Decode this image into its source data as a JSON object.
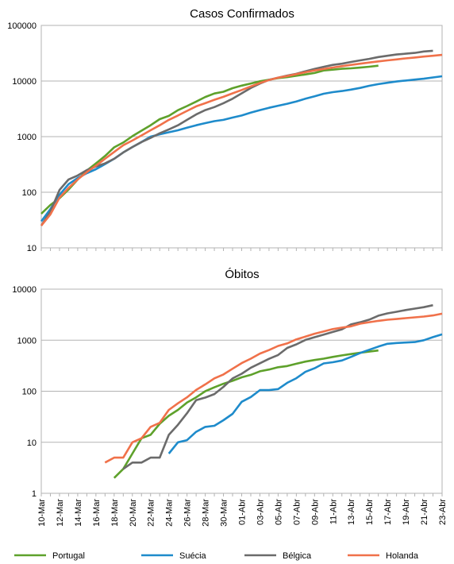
{
  "chart_data": [
    {
      "type": "line",
      "title": "Casos Confirmados",
      "log_scale": true,
      "grid": true,
      "ylim": [
        10,
        100000
      ],
      "yticks": [
        10,
        100,
        1000,
        10000,
        100000
      ],
      "series": [
        {
          "name": "Portugal",
          "color": "#5ea12b",
          "values": [
            41,
            59,
            78,
            112,
            169,
            245,
            331,
            448,
            642,
            785,
            1020,
            1280,
            1600,
            2060,
            2362,
            2995,
            3544,
            4268,
            5170,
            5962,
            6408,
            7443,
            8251,
            9034,
            9886,
            10524,
            11278,
            11730,
            12442,
            13141,
            13956,
            15472,
            15987,
            16585,
            16934,
            17448,
            18091,
            18841,
            null,
            null,
            null,
            null,
            null,
            null,
            null
          ]
        },
        {
          "name": "Suécia",
          "color": "#1e8bcb",
          "values": [
            30,
            50,
            90,
            140,
            180,
            220,
            260,
            320,
            400,
            520,
            650,
            800,
            1000,
            1100,
            1200,
            1300,
            1450,
            1600,
            1750,
            1900,
            2000,
            2200,
            2400,
            2700,
            3000,
            3300,
            3600,
            3900,
            4300,
            4800,
            5300,
            5900,
            6300,
            6600,
            7000,
            7500,
            8200,
            8800,
            9300,
            9800,
            10200,
            10600,
            11000,
            11600,
            12200
          ]
        },
        {
          "name": "Bélgica",
          "color": "#6b6b6b",
          "values": [
            25,
            45,
            110,
            170,
            200,
            250,
            290,
            330,
            400,
            520,
            650,
            800,
            950,
            1150,
            1350,
            1600,
            2000,
            2500,
            3000,
            3400,
            4000,
            4800,
            6000,
            7500,
            9000,
            10500,
            11500,
            12500,
            13500,
            15000,
            16500,
            18000,
            19500,
            20500,
            22000,
            23500,
            25000,
            27000,
            28500,
            30000,
            31000,
            32000,
            34000,
            35000,
            null
          ]
        },
        {
          "name": "Holanda",
          "color": "#f0714a",
          "values": [
            25,
            40,
            80,
            120,
            170,
            230,
            300,
            400,
            530,
            700,
            850,
            1050,
            1300,
            1600,
            2000,
            2400,
            2900,
            3500,
            4000,
            4600,
            5200,
            6000,
            6900,
            8000,
            9200,
            10400,
            11500,
            12300,
            13300,
            14400,
            15500,
            16500,
            17500,
            18500,
            19500,
            20500,
            21500,
            22500,
            23500,
            24500,
            25500,
            26500,
            27500,
            28500,
            29500
          ]
        }
      ]
    },
    {
      "type": "line",
      "title": "Óbitos",
      "log_scale": true,
      "grid": true,
      "ylim": [
        1,
        10000
      ],
      "yticks": [
        1,
        10,
        100,
        1000,
        10000
      ],
      "categories": [
        "10-Mar",
        null,
        "12-Mar",
        null,
        "14-Mar",
        null,
        "16-Mar",
        null,
        "18-Mar",
        null,
        "20-Mar",
        null,
        "22-Mar",
        null,
        "24-Mar",
        null,
        "26-Mar",
        null,
        "28-Mar",
        null,
        "30-Mar",
        null,
        "01-Abr",
        null,
        "03-Abr",
        null,
        "05-Abr",
        null,
        "07-Abr",
        null,
        "09-Abr",
        null,
        "11-Abr",
        null,
        "13-Abr",
        null,
        "15-Abr",
        null,
        "17-Abr",
        null,
        "19-Abr",
        null,
        "21-Abr",
        null,
        "23-Abr"
      ],
      "series": [
        {
          "values": [
            null,
            null,
            null,
            null,
            null,
            null,
            null,
            null,
            2,
            3,
            6,
            12,
            14,
            23,
            33,
            43,
            60,
            76,
            100,
            119,
            140,
            160,
            187,
            209,
            246,
            266,
            295,
            311,
            345,
            380,
            409,
            435,
            470,
            504,
            535,
            567,
            599,
            629,
            null,
            null,
            null,
            null,
            null,
            null,
            null
          ]
        },
        {
          "values": [
            null,
            null,
            null,
            null,
            null,
            null,
            null,
            null,
            null,
            null,
            null,
            null,
            null,
            null,
            6,
            10,
            11,
            16,
            20,
            21,
            27,
            36,
            62,
            77,
            105,
            105,
            110,
            146,
            180,
            240,
            282,
            350,
            370,
            400,
            470,
            560,
            650,
            750,
            850,
            880,
            900,
            920,
            1000,
            1150,
            1300
          ]
        },
        {
          "values": [
            null,
            null,
            null,
            null,
            null,
            null,
            null,
            null,
            null,
            3,
            4,
            4,
            5,
            5,
            14,
            22,
            37,
            67,
            75,
            88,
            122,
            178,
            220,
            289,
            353,
            431,
            513,
            705,
            828,
            1011,
            1143,
            1283,
            1447,
            1632,
            2035,
            2240,
            2523,
            3019,
            3346,
            3600,
            3900,
            4150,
            4440,
            4857,
            null
          ]
        },
        {
          "values": [
            null,
            null,
            null,
            null,
            null,
            null,
            null,
            4,
            5,
            5,
            10,
            12,
            20,
            24,
            43,
            58,
            76,
            106,
            136,
            179,
            213,
            276,
            356,
            434,
            546,
            639,
            771,
            864,
            1039,
            1173,
            1339,
            1487,
            1651,
            1766,
            1867,
            2101,
            2248,
            2396,
            2520,
            2600,
            2700,
            2800,
            2900,
            3050,
            3300
          ]
        }
      ]
    }
  ]
}
